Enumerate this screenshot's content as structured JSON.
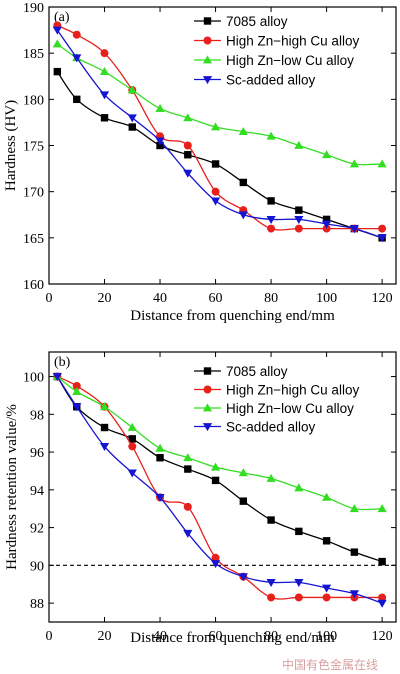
{
  "chart_data": [
    {
      "type": "line",
      "panel_label": "(a)",
      "xlabel": "Distance from quenching end/mm",
      "ylabel": "Hardness (HV)",
      "xlim": [
        0,
        125
      ],
      "ylim": [
        160,
        190
      ],
      "xticks": [
        0,
        20,
        40,
        60,
        80,
        100,
        120
      ],
      "yticks": [
        160,
        165,
        170,
        175,
        180,
        185,
        190
      ],
      "legend_position": "top-right",
      "grid": false,
      "series": [
        {
          "name": "7085 alloy",
          "color": "#000000",
          "marker": "square",
          "x": [
            3,
            10,
            20,
            30,
            40,
            50,
            60,
            70,
            80,
            90,
            100,
            110,
            120
          ],
          "y": [
            183,
            180,
            178,
            177,
            175,
            174,
            173,
            171,
            169,
            168,
            167,
            166,
            165
          ]
        },
        {
          "name": "High Zn−high Cu alloy",
          "color": "#e8201c",
          "marker": "circle",
          "x": [
            3,
            10,
            20,
            30,
            40,
            50,
            60,
            70,
            80,
            90,
            100,
            110,
            120
          ],
          "y": [
            188,
            187,
            185,
            181,
            176,
            175,
            170,
            168,
            166,
            166,
            166,
            166,
            166
          ]
        },
        {
          "name": "High Zn−low Cu alloy",
          "color": "#33dd22",
          "marker": "triangle-up",
          "x": [
            3,
            10,
            20,
            30,
            40,
            50,
            60,
            70,
            80,
            90,
            100,
            110,
            120
          ],
          "y": [
            186,
            184.5,
            183,
            181,
            179,
            178,
            177,
            176.5,
            176,
            175,
            174,
            173,
            173
          ]
        },
        {
          "name": "Sc-added alloy",
          "color": "#1414d2",
          "marker": "triangle-down",
          "x": [
            3,
            10,
            20,
            30,
            40,
            50,
            60,
            70,
            80,
            90,
            100,
            110,
            120
          ],
          "y": [
            187.5,
            184.5,
            180.5,
            178,
            175.5,
            172,
            169,
            167.5,
            167,
            167,
            166.5,
            166,
            165
          ]
        }
      ]
    },
    {
      "type": "line",
      "panel_label": "(b)",
      "xlabel": "Distance from quenching end/mm",
      "ylabel": "Hardness retention value/%",
      "xlim": [
        0,
        125
      ],
      "ylim": [
        87,
        101.3
      ],
      "xticks": [
        0,
        20,
        40,
        60,
        80,
        100,
        120
      ],
      "yticks": [
        88,
        90,
        92,
        94,
        96,
        98,
        100
      ],
      "reference_line": {
        "y": 90,
        "style": "dashed",
        "color": "#000000"
      },
      "legend_position": "top-right",
      "grid": false,
      "series": [
        {
          "name": "7085 alloy",
          "color": "#000000",
          "marker": "square",
          "x": [
            3,
            10,
            20,
            30,
            40,
            50,
            60,
            70,
            80,
            90,
            100,
            110,
            120
          ],
          "y": [
            100,
            98.4,
            97.3,
            96.7,
            95.7,
            95.1,
            94.5,
            93.4,
            92.4,
            91.8,
            91.3,
            90.7,
            90.2
          ]
        },
        {
          "name": "High Zn−high Cu alloy",
          "color": "#e8201c",
          "marker": "circle",
          "x": [
            3,
            10,
            20,
            30,
            40,
            50,
            60,
            70,
            80,
            90,
            100,
            110,
            120
          ],
          "y": [
            100,
            99.5,
            98.4,
            96.3,
            93.6,
            93.1,
            90.4,
            89.4,
            88.3,
            88.3,
            88.3,
            88.3,
            88.3
          ]
        },
        {
          "name": "High Zn−low Cu alloy",
          "color": "#33dd22",
          "marker": "triangle-up",
          "x": [
            3,
            10,
            20,
            30,
            40,
            50,
            60,
            70,
            80,
            90,
            100,
            110,
            120
          ],
          "y": [
            100,
            99.2,
            98.4,
            97.3,
            96.2,
            95.7,
            95.2,
            94.9,
            94.6,
            94.1,
            93.6,
            93.0,
            93.0
          ]
        },
        {
          "name": "Sc-added alloy",
          "color": "#1414d2",
          "marker": "triangle-down",
          "x": [
            3,
            10,
            20,
            30,
            40,
            50,
            60,
            70,
            80,
            90,
            100,
            110,
            120
          ],
          "y": [
            100,
            98.4,
            96.3,
            94.9,
            93.6,
            91.7,
            90.1,
            89.4,
            89.1,
            89.1,
            88.8,
            88.5,
            88.0
          ]
        }
      ]
    }
  ],
  "watermark": "中国有色金属在线"
}
